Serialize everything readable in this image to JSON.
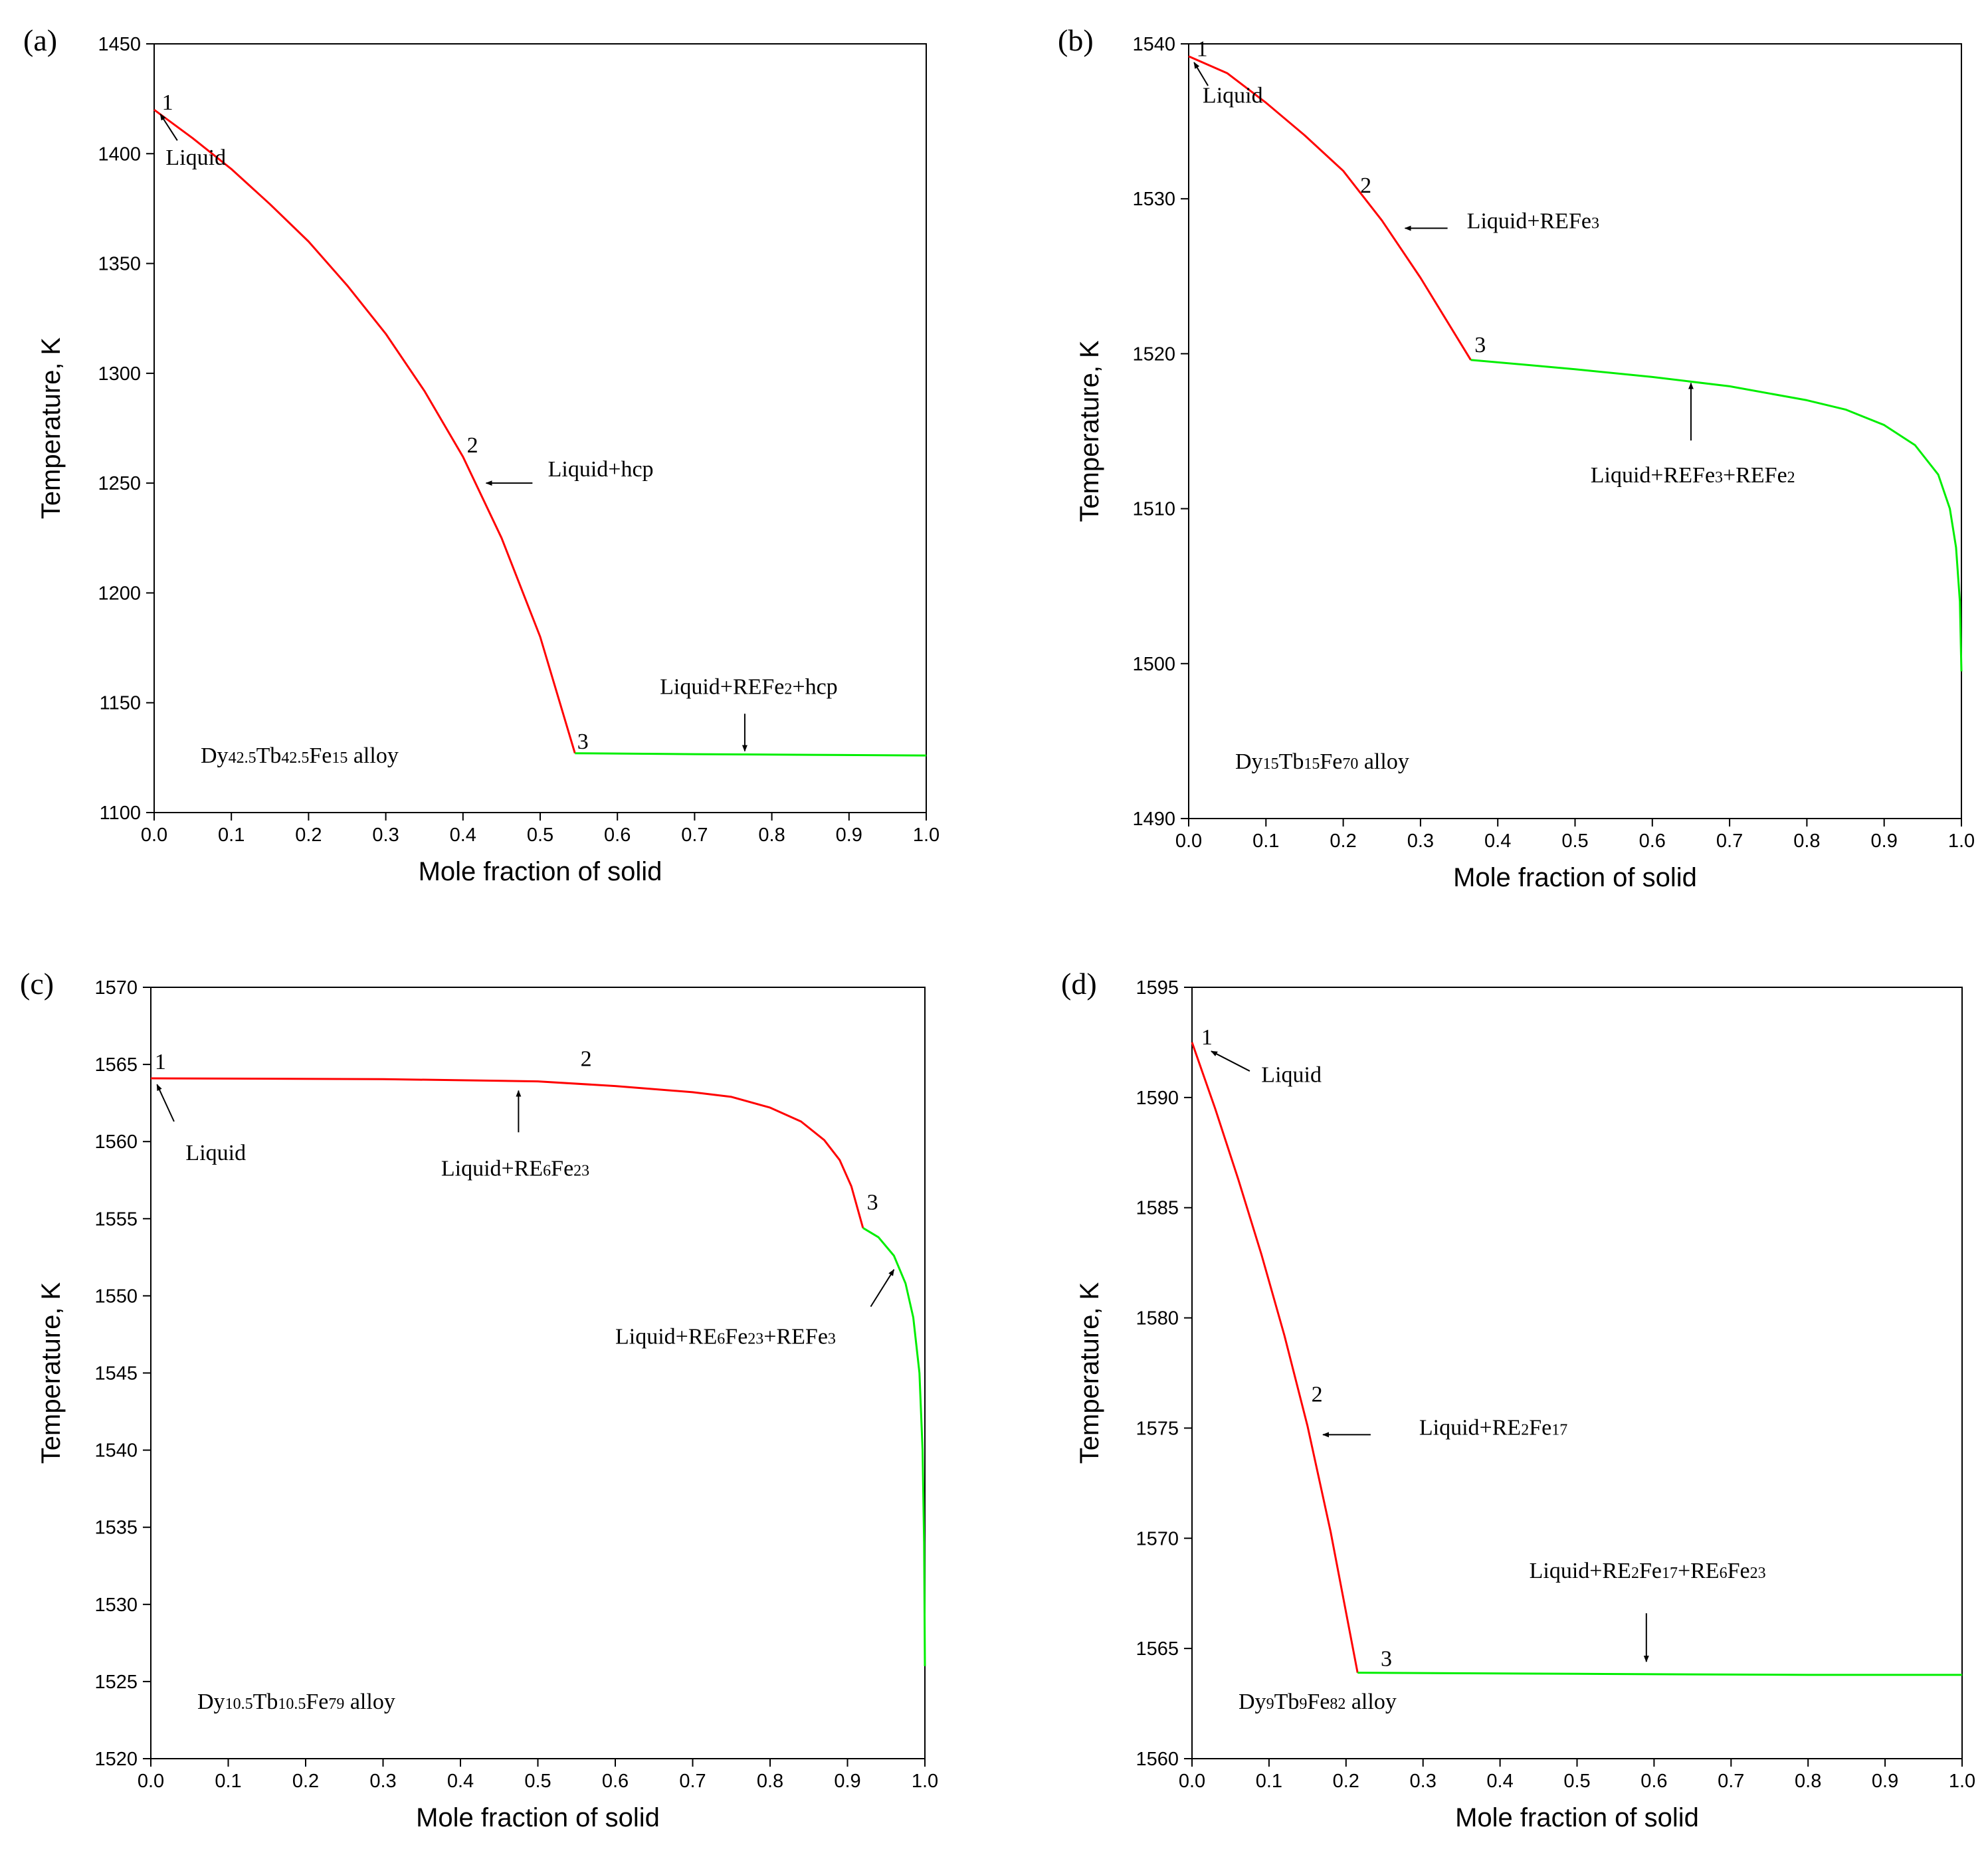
{
  "chart_data": [
    {
      "type": "line",
      "panel_label": "(a)",
      "xlabel": "Mole fraction of solid",
      "ylabel": "Temperature, K",
      "xlim": [
        0,
        1.0
      ],
      "ylim": [
        1100,
        1450
      ],
      "xticks": [
        0.0,
        0.1,
        0.2,
        0.3,
        0.4,
        0.5,
        0.6,
        0.7,
        0.8,
        0.9,
        1.0
      ],
      "yticks": [
        1100,
        1150,
        1200,
        1250,
        1300,
        1350,
        1400,
        1450
      ],
      "alloy_label": [
        {
          "t": "Dy"
        },
        {
          "t": "42.5",
          "sub": true
        },
        {
          "t": "Tb"
        },
        {
          "t": "42.5",
          "sub": true
        },
        {
          "t": "Fe"
        },
        {
          "t": "15",
          "sub": true
        },
        {
          "t": " alloy"
        }
      ],
      "series": [
        {
          "name": "red",
          "color": "#ff0000",
          "points": [
            [
              0,
              1420
            ],
            [
              0.05,
              1407
            ],
            [
              0.1,
              1393
            ],
            [
              0.15,
              1377
            ],
            [
              0.2,
              1360
            ],
            [
              0.25,
              1340
            ],
            [
              0.3,
              1318
            ],
            [
              0.35,
              1292
            ],
            [
              0.4,
              1262
            ],
            [
              0.45,
              1225
            ],
            [
              0.5,
              1180
            ],
            [
              0.545,
              1127
            ]
          ]
        },
        {
          "name": "green",
          "color": "#00ee00",
          "points": [
            [
              0.545,
              1127
            ],
            [
              0.7,
              1126.6
            ],
            [
              0.85,
              1126.3
            ],
            [
              1.0,
              1126
            ]
          ]
        }
      ],
      "point_labels": [
        {
          "text": "1",
          "x": 0.01,
          "y": 1420
        },
        {
          "text": "2",
          "x": 0.405,
          "y": 1264
        },
        {
          "text": "3",
          "x": 0.548,
          "y": 1129
        }
      ],
      "annotations": [
        {
          "segments": [
            {
              "t": "Liquid"
            }
          ],
          "tx": 0.015,
          "ty": 1395,
          "arrow": [
            [
              0.03,
              1406
            ],
            [
              0.008,
              1418
            ]
          ]
        },
        {
          "segments": [
            {
              "t": "Liquid+hcp"
            }
          ],
          "tx": 0.51,
          "ty": 1253,
          "arrow": [
            [
              0.49,
              1250
            ],
            [
              0.43,
              1250
            ]
          ]
        },
        {
          "segments": [
            {
              "t": "Liquid+REFe"
            },
            {
              "t": "2",
              "sub": true
            },
            {
              "t": "+hcp"
            }
          ],
          "tx": 0.655,
          "ty": 1154,
          "arrow": [
            [
              0.765,
              1145
            ],
            [
              0.765,
              1128
            ]
          ]
        }
      ]
    },
    {
      "type": "line",
      "panel_label": "(b)",
      "xlabel": "Mole fraction of solid",
      "ylabel": "Temperature, K",
      "xlim": [
        0,
        1.0
      ],
      "ylim": [
        1490,
        1540
      ],
      "xticks": [
        0.0,
        0.1,
        0.2,
        0.3,
        0.4,
        0.5,
        0.6,
        0.7,
        0.8,
        0.9,
        1.0
      ],
      "yticks": [
        1490,
        1500,
        1510,
        1520,
        1530,
        1540
      ],
      "alloy_label": [
        {
          "t": "Dy"
        },
        {
          "t": "15",
          "sub": true
        },
        {
          "t": "Tb"
        },
        {
          "t": "15",
          "sub": true
        },
        {
          "t": "Fe"
        },
        {
          "t": "70",
          "sub": true
        },
        {
          "t": " alloy"
        }
      ],
      "series": [
        {
          "name": "red",
          "color": "#ff0000",
          "points": [
            [
              0,
              1539.2
            ],
            [
              0.05,
              1538.1
            ],
            [
              0.1,
              1536.2
            ],
            [
              0.15,
              1534.1
            ],
            [
              0.2,
              1531.8
            ],
            [
              0.25,
              1528.6
            ],
            [
              0.3,
              1524.9
            ],
            [
              0.365,
              1519.6
            ]
          ]
        },
        {
          "name": "green",
          "color": "#00ee00",
          "points": [
            [
              0.365,
              1519.6
            ],
            [
              0.5,
              1519
            ],
            [
              0.6,
              1518.5
            ],
            [
              0.7,
              1517.9
            ],
            [
              0.8,
              1517
            ],
            [
              0.85,
              1516.4
            ],
            [
              0.9,
              1515.4
            ],
            [
              0.94,
              1514.1
            ],
            [
              0.97,
              1512.2
            ],
            [
              0.985,
              1510
            ],
            [
              0.993,
              1507.5
            ],
            [
              0.998,
              1504
            ],
            [
              1.0,
              1499.5
            ]
          ]
        }
      ],
      "point_labels": [
        {
          "text": "1",
          "x": 0.01,
          "y": 1539.2
        },
        {
          "text": "2",
          "x": 0.222,
          "y": 1530.4
        },
        {
          "text": "3",
          "x": 0.37,
          "y": 1520.1
        }
      ],
      "annotations": [
        {
          "segments": [
            {
              "t": "Liquid"
            }
          ],
          "tx": 0.018,
          "ty": 1536.2,
          "arrow": [
            [
              0.025,
              1537.3
            ],
            [
              0.007,
              1538.8
            ]
          ]
        },
        {
          "segments": [
            {
              "t": "Liquid+REFe"
            },
            {
              "t": "3",
              "sub": true
            }
          ],
          "tx": 0.36,
          "ty": 1528.1,
          "arrow": [
            [
              0.335,
              1528.1
            ],
            [
              0.28,
              1528.1
            ]
          ]
        },
        {
          "segments": [
            {
              "t": "Liquid+REFe"
            },
            {
              "t": "3",
              "sub": true
            },
            {
              "t": "+REFe"
            },
            {
              "t": "2",
              "sub": true
            }
          ],
          "tx": 0.52,
          "ty": 1511.7,
          "arrow": [
            [
              0.65,
              1514.4
            ],
            [
              0.65,
              1518.1
            ]
          ]
        }
      ]
    },
    {
      "type": "line",
      "panel_label": "(c)",
      "xlabel": "Mole fraction of solid",
      "ylabel": "Temperature, K",
      "xlim": [
        0,
        1.0
      ],
      "ylim": [
        1520,
        1570
      ],
      "xticks": [
        0.0,
        0.1,
        0.2,
        0.3,
        0.4,
        0.5,
        0.6,
        0.7,
        0.8,
        0.9,
        1.0
      ],
      "yticks": [
        1520,
        1525,
        1530,
        1535,
        1540,
        1545,
        1550,
        1555,
        1560,
        1565,
        1570
      ],
      "alloy_label": [
        {
          "t": "Dy"
        },
        {
          "t": "10.5",
          "sub": true
        },
        {
          "t": "Tb"
        },
        {
          "t": "10.5",
          "sub": true
        },
        {
          "t": "Fe"
        },
        {
          "t": "79",
          "sub": true
        },
        {
          "t": " alloy"
        }
      ],
      "series": [
        {
          "name": "red",
          "color": "#ff0000",
          "points": [
            [
              0,
              1564.1
            ],
            [
              0.3,
              1564.05
            ],
            [
              0.5,
              1563.9
            ],
            [
              0.6,
              1563.6
            ],
            [
              0.7,
              1563.2
            ],
            [
              0.75,
              1562.9
            ],
            [
              0.8,
              1562.2
            ],
            [
              0.84,
              1561.3
            ],
            [
              0.87,
              1560.1
            ],
            [
              0.89,
              1558.8
            ],
            [
              0.905,
              1557.1
            ],
            [
              0.92,
              1554.4
            ]
          ]
        },
        {
          "name": "green",
          "color": "#00ee00",
          "points": [
            [
              0.92,
              1554.4
            ],
            [
              0.94,
              1553.8
            ],
            [
              0.96,
              1552.6
            ],
            [
              0.975,
              1550.8
            ],
            [
              0.985,
              1548.6
            ],
            [
              0.993,
              1545
            ],
            [
              0.997,
              1540
            ],
            [
              0.999,
              1534
            ],
            [
              1.0,
              1526
            ]
          ]
        }
      ],
      "point_labels": [
        {
          "text": "1",
          "x": 0.005,
          "y": 1564.7
        },
        {
          "text": "2",
          "x": 0.555,
          "y": 1564.9
        },
        {
          "text": "3",
          "x": 0.925,
          "y": 1555.6
        }
      ],
      "annotations": [
        {
          "segments": [
            {
              "t": "Liquid"
            }
          ],
          "tx": 0.045,
          "ty": 1558.8,
          "arrow": [
            [
              0.03,
              1561.3
            ],
            [
              0.008,
              1563.7
            ]
          ]
        },
        {
          "segments": [
            {
              "t": "Liquid+RE"
            },
            {
              "t": "6",
              "sub": true
            },
            {
              "t": "Fe"
            },
            {
              "t": "23",
              "sub": true
            }
          ],
          "tx": 0.375,
          "ty": 1557.8,
          "arrow": [
            [
              0.475,
              1560.6
            ],
            [
              0.475,
              1563.3
            ]
          ]
        },
        {
          "segments": [
            {
              "t": "Liquid+RE"
            },
            {
              "t": "6",
              "sub": true
            },
            {
              "t": "Fe"
            },
            {
              "t": "23",
              "sub": true
            },
            {
              "t": "+REFe"
            },
            {
              "t": "3",
              "sub": true
            }
          ],
          "tx": 0.6,
          "ty": 1546.9,
          "arrow": [
            [
              0.93,
              1549.3
            ],
            [
              0.96,
              1551.7
            ]
          ]
        }
      ]
    },
    {
      "type": "line",
      "panel_label": "(d)",
      "xlabel": "Mole fraction of solid",
      "ylabel": "Temperature, K",
      "xlim": [
        0,
        1.0
      ],
      "ylim": [
        1560,
        1595
      ],
      "xticks": [
        0.0,
        0.1,
        0.2,
        0.3,
        0.4,
        0.5,
        0.6,
        0.7,
        0.8,
        0.9,
        1.0
      ],
      "yticks": [
        1560,
        1565,
        1570,
        1575,
        1580,
        1585,
        1590,
        1595
      ],
      "alloy_label": [
        {
          "t": "Dy"
        },
        {
          "t": "9",
          "sub": true
        },
        {
          "t": "Tb"
        },
        {
          "t": "9",
          "sub": true
        },
        {
          "t": "Fe"
        },
        {
          "t": "82",
          "sub": true
        },
        {
          "t": " alloy"
        }
      ],
      "series": [
        {
          "name": "red",
          "color": "#ff0000",
          "points": [
            [
              0,
              1592.5
            ],
            [
              0.03,
              1589.5
            ],
            [
              0.06,
              1586.3
            ],
            [
              0.09,
              1582.9
            ],
            [
              0.12,
              1579.2
            ],
            [
              0.15,
              1575.1
            ],
            [
              0.18,
              1570.3
            ],
            [
              0.215,
              1563.9
            ]
          ]
        },
        {
          "name": "green",
          "color": "#00ee00",
          "points": [
            [
              0.215,
              1563.9
            ],
            [
              0.5,
              1563.85
            ],
            [
              0.8,
              1563.8
            ],
            [
              1.0,
              1563.8
            ]
          ]
        }
      ],
      "point_labels": [
        {
          "text": "1",
          "x": 0.012,
          "y": 1592.4
        },
        {
          "text": "2",
          "x": 0.155,
          "y": 1576.2
        },
        {
          "text": "3",
          "x": 0.245,
          "y": 1564.2
        }
      ],
      "annotations": [
        {
          "segments": [
            {
              "t": "Liquid"
            }
          ],
          "tx": 0.09,
          "ty": 1590.7,
          "arrow": [
            [
              0.075,
              1591.2
            ],
            [
              0.025,
              1592.1
            ]
          ]
        },
        {
          "segments": [
            {
              "t": "Liquid+RE"
            },
            {
              "t": "2",
              "sub": true
            },
            {
              "t": "Fe"
            },
            {
              "t": "17",
              "sub": true
            }
          ],
          "tx": 0.295,
          "ty": 1574.7,
          "arrow": [
            [
              0.232,
              1574.7
            ],
            [
              0.17,
              1574.7
            ]
          ]
        },
        {
          "segments": [
            {
              "t": "Liquid+RE"
            },
            {
              "t": "2",
              "sub": true
            },
            {
              "t": "Fe"
            },
            {
              "t": "17",
              "sub": true
            },
            {
              "t": "+RE"
            },
            {
              "t": "6",
              "sub": true
            },
            {
              "t": "Fe"
            },
            {
              "t": "23",
              "sub": true
            }
          ],
          "tx": 0.438,
          "ty": 1568.2,
          "arrow": [
            [
              0.59,
              1566.6
            ],
            [
              0.59,
              1564.4
            ]
          ]
        }
      ]
    }
  ]
}
